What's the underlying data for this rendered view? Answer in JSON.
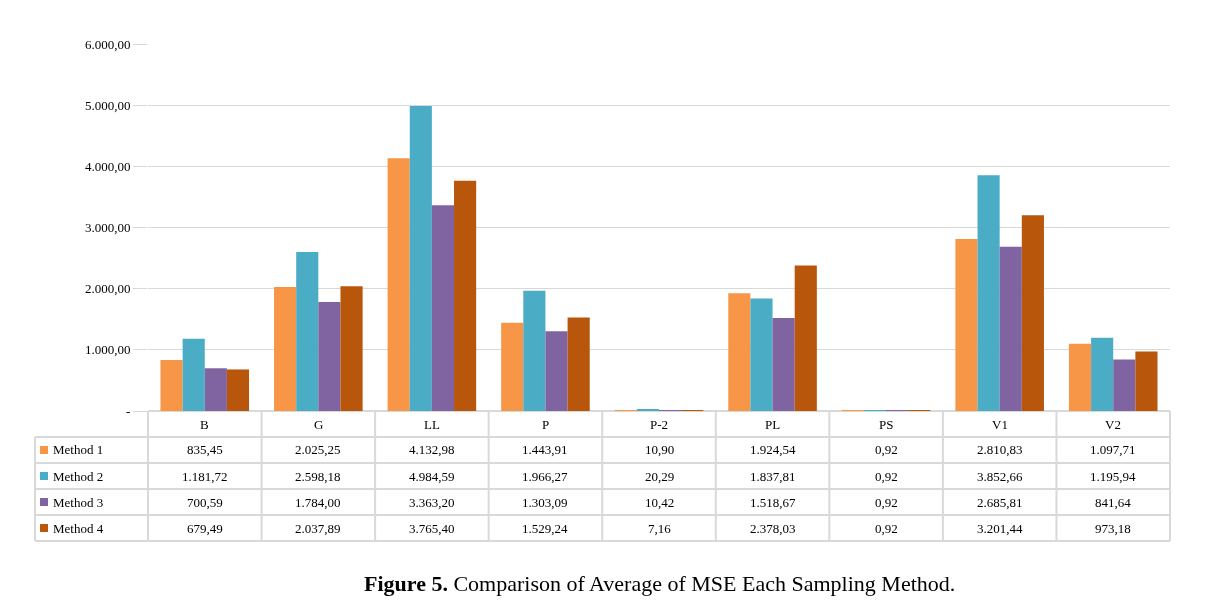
{
  "chart_data": {
    "type": "bar",
    "title": "Figure 5. Comparison of Average of MSE Each Sampling Method.",
    "categories": [
      "B",
      "G",
      "LL",
      "P",
      "P-2",
      "PL",
      "PS",
      "V1",
      "V2"
    ],
    "series": [
      {
        "name": "Method 1",
        "color": "#f79646",
        "values": [
          835.45,
          2025.25,
          4132.98,
          1443.91,
          10.9,
          1924.54,
          0.92,
          2810.83,
          1097.71
        ],
        "value_labels": [
          "835,45",
          "2.025,25",
          "4.132,98",
          "1.443,91",
          "10,90",
          "1.924,54",
          "0,92",
          "2.810,83",
          "1.097,71"
        ]
      },
      {
        "name": "Method 2",
        "color": "#4bacc6",
        "values": [
          1181.72,
          2598.18,
          4984.59,
          1966.27,
          20.29,
          1837.81,
          0.92,
          3852.66,
          1195.94
        ],
        "value_labels": [
          "1.181,72",
          "2.598,18",
          "4.984,59",
          "1.966,27",
          "20,29",
          "1.837,81",
          "0,92",
          "3.852,66",
          "1.195,94"
        ]
      },
      {
        "name": "Method 3",
        "color": "#8064a2",
        "values": [
          700.59,
          1784.0,
          3363.2,
          1303.09,
          10.42,
          1518.67,
          0.92,
          2685.81,
          841.64
        ],
        "value_labels": [
          "700,59",
          "1.784,00",
          "3.363,20",
          "1.303,09",
          "10,42",
          "1.518,67",
          "0,92",
          "2.685,81",
          "841,64"
        ]
      },
      {
        "name": "Method 4",
        "color": "#b8560b",
        "values": [
          679.49,
          2037.89,
          3765.4,
          1529.24,
          7.16,
          2378.03,
          0.92,
          3201.44,
          973.18
        ],
        "value_labels": [
          "679,49",
          "2.037,89",
          "3.765,40",
          "1.529,24",
          "7,16",
          "2.378,03",
          "0,92",
          "3.201,44",
          "973,18"
        ]
      }
    ],
    "ylim": [
      0,
      6000
    ],
    "yticks": [
      {
        "value": 0,
        "label": "-"
      },
      {
        "value": 1000,
        "label": "1.000,00"
      },
      {
        "value": 2000,
        "label": "2.000,00"
      },
      {
        "value": 3000,
        "label": "3.000,00"
      },
      {
        "value": 4000,
        "label": "4.000,00"
      },
      {
        "value": 5000,
        "label": "5.000,00"
      },
      {
        "value": 6000,
        "label": "6.000,00"
      }
    ],
    "grid": "y",
    "legend": "bottom left",
    "tick_labels": "y"
  }
}
